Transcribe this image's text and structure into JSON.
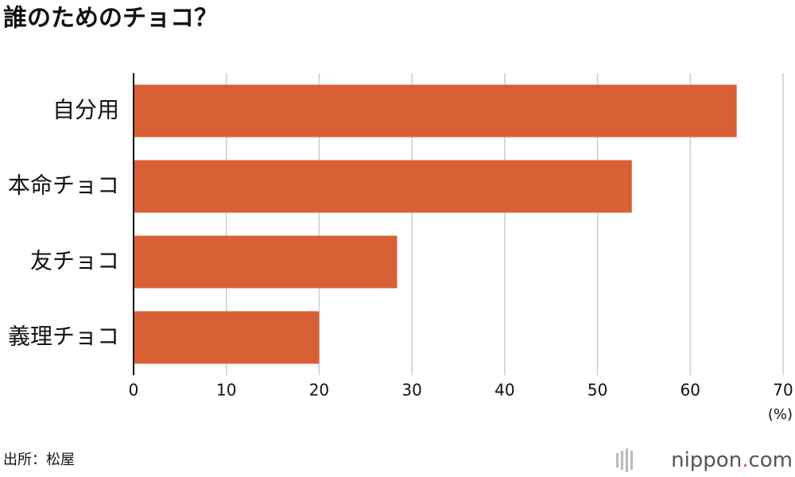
{
  "chart_data": {
    "type": "hbar",
    "title": "誰のためのチョコ？",
    "categories": [
      "自分用",
      "本命チョコ",
      "友チョコ",
      "義理チョコ"
    ],
    "values": [
      65.0,
      53.7,
      28.4,
      20.0
    ],
    "color": "#d95f35",
    "xlim": [
      0,
      70
    ],
    "xticks": [
      0,
      10,
      20,
      30,
      40,
      50,
      60,
      70
    ],
    "grid": true,
    "x_unit": "(%)",
    "source": "出所：松屋",
    "logo": [
      "nippon",
      ".",
      "com"
    ]
  }
}
